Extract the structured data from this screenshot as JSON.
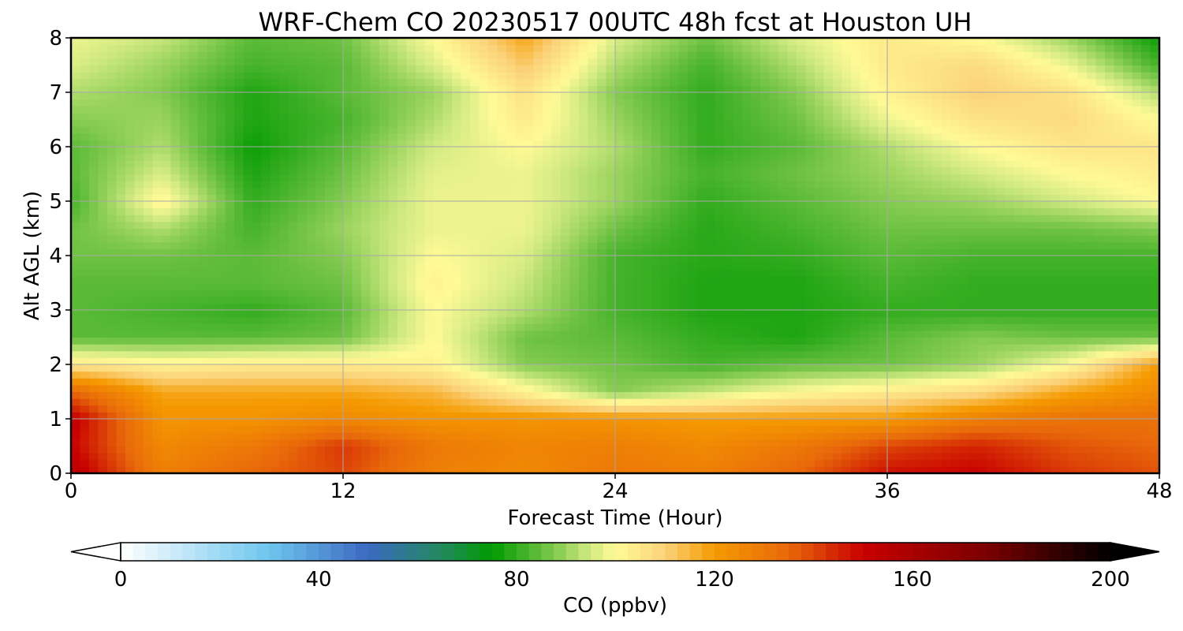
{
  "chart_data": {
    "type": "heatmap",
    "title": "WRF-Chem CO  20230517 00UTC 48h fcst at Houston UH",
    "xlabel": "Forecast Time (Hour)",
    "ylabel": "Alt AGL (km)",
    "xlim": [
      0,
      48
    ],
    "ylim": [
      0,
      8
    ],
    "x_ticks": [
      0,
      12,
      24,
      36,
      48
    ],
    "y_ticks": [
      0,
      1,
      2,
      3,
      4,
      5,
      6,
      7,
      8
    ],
    "grid": true,
    "x": [
      0,
      4,
      8,
      12,
      16,
      20,
      24,
      28,
      32,
      36,
      40,
      44,
      48
    ],
    "y": [
      0,
      0.5,
      1,
      1.5,
      2,
      2.5,
      3,
      3.5,
      4,
      4.5,
      5,
      5.5,
      6,
      6.5,
      7,
      7.5,
      8
    ],
    "z": [
      [
        155,
        128,
        135,
        140,
        128,
        125,
        130,
        128,
        135,
        148,
        150,
        142,
        138
      ],
      [
        150,
        125,
        130,
        142,
        130,
        126,
        128,
        125,
        130,
        140,
        145,
        138,
        135
      ],
      [
        152,
        122,
        122,
        125,
        122,
        122,
        122,
        120,
        120,
        120,
        128,
        132,
        132
      ],
      [
        135,
        118,
        118,
        118,
        115,
        102,
        88,
        94,
        100,
        104,
        108,
        118,
        125
      ],
      [
        105,
        102,
        104,
        104,
        102,
        88,
        86,
        82,
        85,
        86,
        90,
        100,
        120
      ],
      [
        84,
        84,
        84,
        86,
        100,
        86,
        84,
        80,
        78,
        84,
        88,
        86,
        86
      ],
      [
        84,
        82,
        80,
        84,
        100,
        92,
        82,
        78,
        78,
        80,
        80,
        80,
        80
      ],
      [
        84,
        84,
        84,
        86,
        102,
        94,
        82,
        78,
        78,
        82,
        80,
        80,
        80
      ],
      [
        86,
        86,
        84,
        88,
        100,
        96,
        82,
        79,
        80,
        84,
        82,
        82,
        82
      ],
      [
        86,
        92,
        82,
        90,
        98,
        98,
        86,
        79,
        82,
        86,
        86,
        86,
        88
      ],
      [
        82,
        102,
        80,
        88,
        98,
        98,
        90,
        80,
        84,
        88,
        90,
        95,
        100
      ],
      [
        84,
        96,
        78,
        86,
        97,
        98,
        90,
        82,
        86,
        90,
        95,
        100,
        103
      ],
      [
        84,
        92,
        76,
        84,
        95,
        100,
        92,
        80,
        84,
        92,
        100,
        105,
        105
      ],
      [
        88,
        90,
        78,
        82,
        92,
        104,
        90,
        80,
        86,
        98,
        106,
        108,
        100
      ],
      [
        92,
        88,
        78,
        84,
        90,
        106,
        88,
        80,
        88,
        102,
        110,
        106,
        92
      ],
      [
        96,
        90,
        82,
        84,
        96,
        112,
        92,
        82,
        92,
        104,
        108,
        98,
        82
      ],
      [
        98,
        94,
        84,
        86,
        100,
        118,
        96,
        86,
        96,
        104,
        100,
        90,
        76
      ]
    ],
    "colorbar": {
      "label": "CO  (ppbv)",
      "min": 0,
      "max": 200,
      "ticks": [
        0,
        40,
        80,
        120,
        160,
        200
      ],
      "extend": "both",
      "stops": [
        {
          "v": 0,
          "c": "#ffffff"
        },
        {
          "v": 30,
          "c": "#6ec6ee"
        },
        {
          "v": 50,
          "c": "#3a68c0"
        },
        {
          "v": 65,
          "c": "#228a5c"
        },
        {
          "v": 75,
          "c": "#009a00"
        },
        {
          "v": 85,
          "c": "#64be3c"
        },
        {
          "v": 95,
          "c": "#d2ea82"
        },
        {
          "v": 100,
          "c": "#fffa96"
        },
        {
          "v": 110,
          "c": "#fbd27a"
        },
        {
          "v": 120,
          "c": "#f59a00"
        },
        {
          "v": 135,
          "c": "#e8680a"
        },
        {
          "v": 150,
          "c": "#c80000"
        },
        {
          "v": 175,
          "c": "#7a0000"
        },
        {
          "v": 200,
          "c": "#000000"
        }
      ]
    }
  }
}
